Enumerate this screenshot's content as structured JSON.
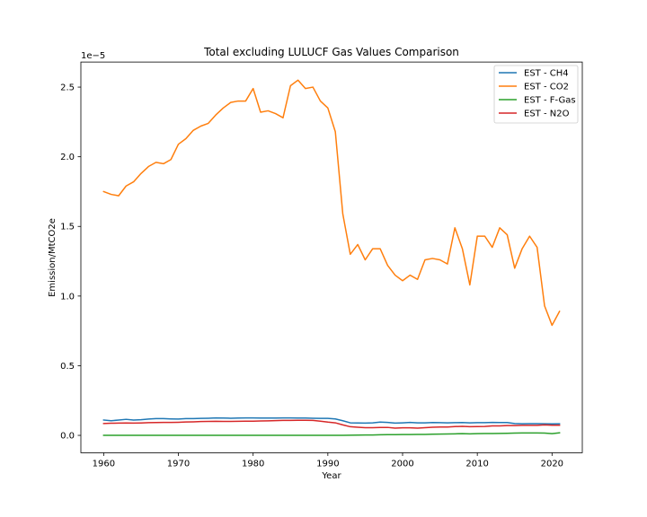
{
  "chart_data": {
    "type": "line",
    "title": "Total excluding LULUCF Gas Values Comparison",
    "xlabel": "Year",
    "ylabel": "Emission/MtCO2e",
    "offset_label": "1e−5",
    "scale_factor": 1e-05,
    "xlim": [
      1956.95,
      2024.05
    ],
    "ylim": [
      -0.125,
      2.68
    ],
    "xticks": [
      1960,
      1970,
      1980,
      1990,
      2000,
      2010,
      2020
    ],
    "yticks": [
      0.0,
      0.5,
      1.0,
      1.5,
      2.0,
      2.5
    ],
    "ytick_labels": [
      "0.0",
      "0.5",
      "1.0",
      "1.5",
      "2.0",
      "2.5"
    ],
    "grid": false,
    "legend_position": "upper right",
    "x": [
      1960,
      1961,
      1962,
      1963,
      1964,
      1965,
      1966,
      1967,
      1968,
      1969,
      1970,
      1971,
      1972,
      1973,
      1974,
      1975,
      1976,
      1977,
      1978,
      1979,
      1980,
      1981,
      1982,
      1983,
      1984,
      1985,
      1986,
      1987,
      1988,
      1989,
      1990,
      1991,
      1992,
      1993,
      1994,
      1995,
      1996,
      1997,
      1998,
      1999,
      2000,
      2001,
      2002,
      2003,
      2004,
      2005,
      2006,
      2007,
      2008,
      2009,
      2010,
      2011,
      2012,
      2013,
      2014,
      2015,
      2016,
      2017,
      2018,
      2019,
      2020,
      2021
    ],
    "series": [
      {
        "name": "EST - CH4",
        "color": "#1f77b4",
        "values": [
          0.11,
          0.105,
          0.11,
          0.115,
          0.11,
          0.112,
          0.117,
          0.12,
          0.12,
          0.118,
          0.117,
          0.12,
          0.12,
          0.122,
          0.123,
          0.125,
          0.124,
          0.123,
          0.124,
          0.125,
          0.125,
          0.124,
          0.124,
          0.124,
          0.125,
          0.125,
          0.124,
          0.124,
          0.123,
          0.122,
          0.122,
          0.118,
          0.105,
          0.09,
          0.089,
          0.088,
          0.09,
          0.095,
          0.093,
          0.088,
          0.09,
          0.093,
          0.09,
          0.09,
          0.092,
          0.091,
          0.09,
          0.091,
          0.092,
          0.09,
          0.091,
          0.091,
          0.093,
          0.092,
          0.092,
          0.085,
          0.083,
          0.084,
          0.084,
          0.083,
          0.082,
          0.083
        ]
      },
      {
        "name": "EST - CO2",
        "color": "#ff7f0e",
        "values": [
          1.75,
          1.73,
          1.72,
          1.79,
          1.82,
          1.88,
          1.93,
          1.96,
          1.95,
          1.98,
          2.09,
          2.13,
          2.19,
          2.22,
          2.24,
          2.3,
          2.35,
          2.39,
          2.4,
          2.4,
          2.49,
          2.32,
          2.33,
          2.31,
          2.28,
          2.51,
          2.55,
          2.49,
          2.5,
          2.4,
          2.35,
          2.18,
          1.59,
          1.3,
          1.37,
          1.26,
          1.34,
          1.34,
          1.22,
          1.15,
          1.11,
          1.15,
          1.12,
          1.26,
          1.27,
          1.26,
          1.23,
          1.49,
          1.34,
          1.08,
          1.43,
          1.43,
          1.35,
          1.49,
          1.44,
          1.2,
          1.34,
          1.43,
          1.35,
          0.93,
          0.79,
          0.89
        ]
      },
      {
        "name": "EST - F-Gas",
        "color": "#2ca02c",
        "values": [
          0.0,
          0.0,
          0.0,
          0.0,
          0.0,
          0.0,
          0.0,
          0.0,
          0.0,
          0.0,
          0.0,
          0.0,
          0.0,
          0.0,
          0.0,
          0.0,
          0.0,
          0.0,
          0.0,
          0.0,
          0.0,
          0.0,
          0.0,
          0.0,
          0.0,
          0.0,
          0.0,
          0.0,
          0.0,
          0.0,
          0.0,
          0.0,
          0.0,
          0.001,
          0.002,
          0.003,
          0.003,
          0.004,
          0.005,
          0.005,
          0.006,
          0.006,
          0.007,
          0.007,
          0.008,
          0.009,
          0.01,
          0.011,
          0.012,
          0.011,
          0.012,
          0.013,
          0.013,
          0.014,
          0.015,
          0.016,
          0.017,
          0.017,
          0.017,
          0.016,
          0.012,
          0.018
        ]
      },
      {
        "name": "EST - N2O",
        "color": "#d62728",
        "values": [
          0.085,
          0.087,
          0.088,
          0.089,
          0.088,
          0.089,
          0.091,
          0.092,
          0.093,
          0.093,
          0.094,
          0.096,
          0.097,
          0.099,
          0.1,
          0.101,
          0.1,
          0.1,
          0.101,
          0.102,
          0.102,
          0.103,
          0.104,
          0.106,
          0.107,
          0.107,
          0.108,
          0.108,
          0.107,
          0.102,
          0.095,
          0.09,
          0.075,
          0.062,
          0.058,
          0.055,
          0.055,
          0.057,
          0.057,
          0.052,
          0.054,
          0.054,
          0.052,
          0.055,
          0.058,
          0.06,
          0.06,
          0.063,
          0.065,
          0.062,
          0.063,
          0.064,
          0.068,
          0.068,
          0.07,
          0.07,
          0.072,
          0.072,
          0.072,
          0.075,
          0.073,
          0.073
        ]
      }
    ]
  }
}
